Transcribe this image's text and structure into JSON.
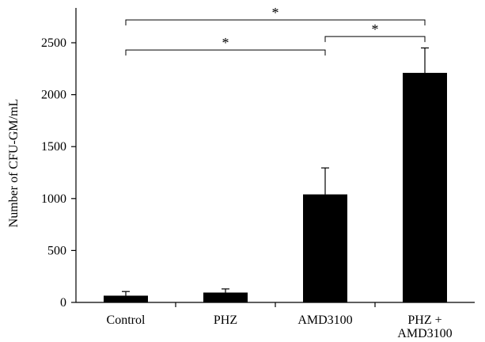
{
  "chart_data": {
    "type": "bar",
    "title": "",
    "xlabel": "",
    "ylabel": "Number of CFU-GM/mL",
    "ylim": [
      0,
      2600
    ],
    "yticks": [
      0,
      500,
      1000,
      1500,
      2000,
      2500
    ],
    "categories": [
      [
        "Control"
      ],
      [
        "PHZ"
      ],
      [
        "AMD3100"
      ],
      [
        "PHZ +",
        "AMD3100"
      ]
    ],
    "values": [
      65,
      95,
      1040,
      2210
    ],
    "errors": [
      40,
      35,
      255,
      240
    ],
    "bar_color": "#000000",
    "grid": false,
    "significance": [
      {
        "from": 0,
        "to": 3,
        "label": "*",
        "y": 2720
      },
      {
        "from": 0,
        "to": 2,
        "label": "*",
        "y": 2430
      },
      {
        "from": 2,
        "to": 3,
        "label": "*",
        "y": 2560
      }
    ]
  }
}
